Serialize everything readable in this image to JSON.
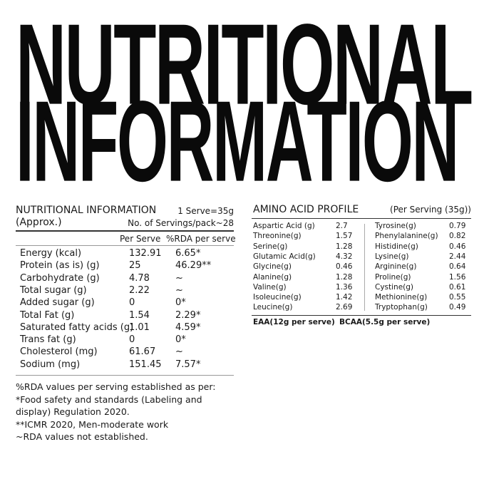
{
  "title": {
    "line1": "NUTRITIONAL",
    "line2": "INFORMATION"
  },
  "nutrition": {
    "heading": "NUTRITIONAL INFORMATION",
    "approx": "(Approx.)",
    "serve": "1 Serve=35g",
    "servings": "No. of Servings/pack~28",
    "col_per_serve": "Per Serve",
    "col_rda": "%RDA per serve",
    "rows": [
      {
        "name": "Energy (kcal)",
        "per": "132.91",
        "rda": "6.65*"
      },
      {
        "name": "Protein (as is) (g)",
        "per": "25",
        "rda": "46.29**"
      },
      {
        "name": "Carbohydrate (g)",
        "per": "4.78",
        "rda": "~"
      },
      {
        "name": "Total sugar (g)",
        "per": "2.22",
        "rda": "~"
      },
      {
        "name": "Added sugar (g)",
        "per": "0",
        "rda": "0*"
      },
      {
        "name": "Total Fat (g)",
        "per": "1.54",
        "rda": "2.29*"
      },
      {
        "name": "Saturated fatty acids (g)",
        "per": "1.01",
        "rda": "4.59*"
      },
      {
        "name": "Trans fat (g)",
        "per": "0",
        "rda": "0*"
      },
      {
        "name": "Cholesterol (mg)",
        "per": "61.67",
        "rda": "~"
      },
      {
        "name": "Sodium (mg)",
        "per": "151.45",
        "rda": "7.57*"
      }
    ],
    "footnotes": [
      "%RDA values per serving established as per:",
      "*Food safety and standards (Labeling and",
      "display) Regulation 2020.",
      "**ICMR 2020, Men-moderate work",
      "~RDA values not established."
    ]
  },
  "amino": {
    "heading": "AMINO ACID PROFILE",
    "per_serving": "(Per Serving (35g))",
    "left": [
      {
        "name": "Aspartic Acid (g)",
        "value": "2.7"
      },
      {
        "name": "Threonine(g)",
        "value": "1.57"
      },
      {
        "name": "Serine(g)",
        "value": "1.28"
      },
      {
        "name": "Glutamic Acid(g)",
        "value": "4.32"
      },
      {
        "name": "Glycine(g)",
        "value": "0.46"
      },
      {
        "name": "Alanine(g)",
        "value": "1.28"
      },
      {
        "name": "Valine(g)",
        "value": "1.36"
      },
      {
        "name": "Isoleucine(g)",
        "value": "1.42"
      },
      {
        "name": "Leucine(g)",
        "value": "2.69"
      }
    ],
    "right": [
      {
        "name": "Tyrosine(g)",
        "value": "0.79"
      },
      {
        "name": "Phenylalanine(g)",
        "value": "0.82"
      },
      {
        "name": "Histidine(g)",
        "value": "0.46"
      },
      {
        "name": "Lysine(g)",
        "value": "2.44"
      },
      {
        "name": "Arginine(g)",
        "value": "0.64"
      },
      {
        "name": "Proline(g)",
        "value": "1.56"
      },
      {
        "name": "Cystine(g)",
        "value": "0.61"
      },
      {
        "name": "Methionine(g)",
        "value": "0.55"
      },
      {
        "name": "Tryptophan(g)",
        "value": "0.49"
      }
    ],
    "eaa": "EAA(12g per serve)",
    "bcaa": "BCAA(5.5g per serve)"
  }
}
